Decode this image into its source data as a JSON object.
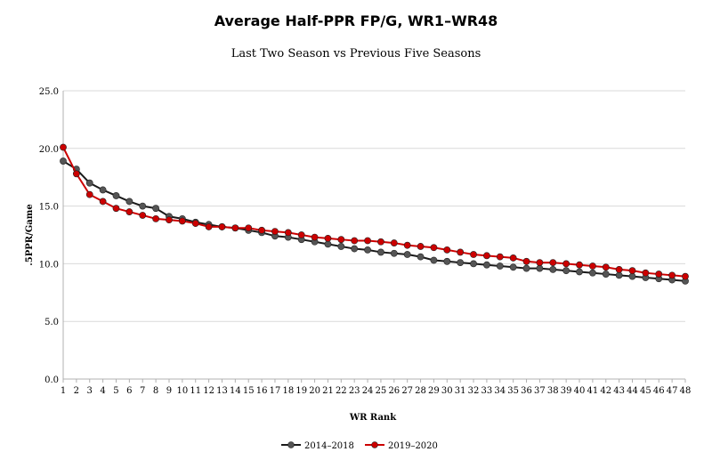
{
  "chart_data": {
    "type": "line",
    "title": "Average Half-PPR FP/G, WR1–WR48",
    "subtitle": "Last Two Season vs Previous Five Seasons",
    "xlabel": "WR Rank",
    "ylabel": ".5PPR/Game",
    "ylim": [
      0,
      25
    ],
    "yticks": [
      "0.0",
      "5.0",
      "10.0",
      "15.0",
      "20.0",
      "25.0"
    ],
    "x": [
      1,
      2,
      3,
      4,
      5,
      6,
      7,
      8,
      9,
      10,
      11,
      12,
      13,
      14,
      15,
      16,
      17,
      18,
      19,
      20,
      21,
      22,
      23,
      24,
      25,
      26,
      27,
      28,
      29,
      30,
      31,
      32,
      33,
      34,
      35,
      36,
      37,
      38,
      39,
      40,
      41,
      42,
      43,
      44,
      45,
      46,
      47,
      48
    ],
    "grid": "horizontal",
    "legend": "bottom",
    "series": [
      {
        "name": "2014–2018",
        "color": "#1a1a1a",
        "marker_color": "#555555",
        "values": [
          18.9,
          18.2,
          17.0,
          16.4,
          15.9,
          15.4,
          15.0,
          14.8,
          14.1,
          13.9,
          13.6,
          13.4,
          13.2,
          13.1,
          12.9,
          12.7,
          12.4,
          12.3,
          12.1,
          11.9,
          11.7,
          11.5,
          11.3,
          11.2,
          11.0,
          10.9,
          10.8,
          10.6,
          10.3,
          10.2,
          10.1,
          10.0,
          9.9,
          9.8,
          9.7,
          9.6,
          9.6,
          9.5,
          9.4,
          9.3,
          9.2,
          9.1,
          9.0,
          8.9,
          8.8,
          8.7,
          8.6,
          8.5
        ]
      },
      {
        "name": "2019–2020",
        "color": "#cc0000",
        "marker_color": "#cc0000",
        "values": [
          20.1,
          17.8,
          16.0,
          15.4,
          14.8,
          14.5,
          14.2,
          13.9,
          13.8,
          13.7,
          13.5,
          13.2,
          13.2,
          13.1,
          13.1,
          12.9,
          12.8,
          12.7,
          12.5,
          12.3,
          12.2,
          12.1,
          12.0,
          12.0,
          11.9,
          11.8,
          11.6,
          11.5,
          11.4,
          11.2,
          11.0,
          10.8,
          10.7,
          10.6,
          10.5,
          10.2,
          10.1,
          10.1,
          10.0,
          9.9,
          9.8,
          9.7,
          9.5,
          9.4,
          9.2,
          9.1,
          9.0,
          8.9
        ]
      }
    ]
  }
}
